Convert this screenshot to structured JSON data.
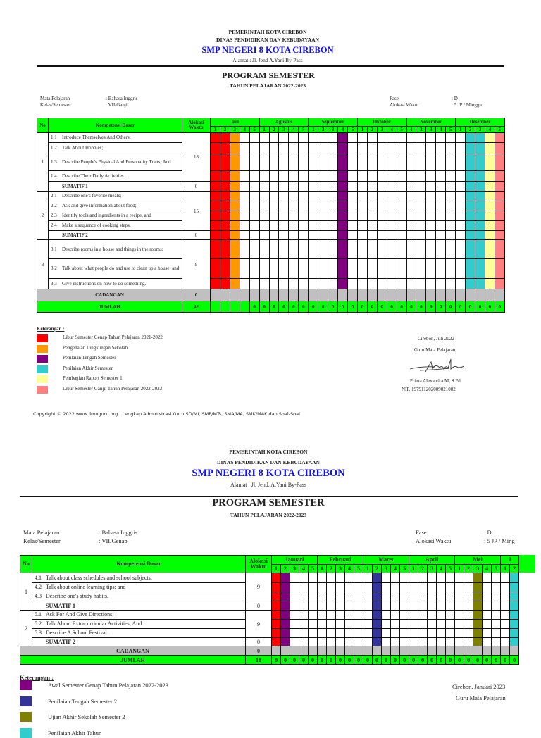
{
  "page1": {
    "header": {
      "government": "PEMERINTAH KOTA CIREBON",
      "department": "DINAS PENDIDIKAN DAN KEBUDAYAAN",
      "school": "SMP NEGERI 8 KOTA CIREBON",
      "address": "Alamat : Jl. Jend A.Yani By-Pass",
      "title": "PROGRAM SEMESTER",
      "year": "TAHUN PELAJARAN 2022-2023"
    },
    "info": {
      "subject_label": "Mata Pelajaran",
      "subject_value": ": Bahasa Inggris",
      "class_label": "Kelas/Semester",
      "class_value": ": VII/Ganjil",
      "phase_label": "Fase",
      "phase_value": ": D",
      "time_label": "Alokasi Waktu",
      "time_value": ": 5 JP / Minggu"
    },
    "table": {
      "col_no": "No",
      "col_kd": "Kompetensi Dasar",
      "col_alokasi": "Alokasi Waktu",
      "months": [
        {
          "name": "Juli",
          "weeks": [
            "1",
            "2",
            "3",
            "4",
            "5"
          ]
        },
        {
          "name": "Agustus",
          "weeks": [
            "1",
            "2",
            "3",
            "4",
            "5"
          ]
        },
        {
          "name": "September",
          "weeks": [
            "1",
            "2",
            "3",
            "4",
            "5"
          ]
        },
        {
          "name": "Oktober",
          "weeks": [
            "1",
            "2",
            "3",
            "4",
            "5"
          ]
        },
        {
          "name": "November",
          "weeks": [
            "1",
            "2",
            "3",
            "4",
            "5"
          ]
        },
        {
          "name": "Desember",
          "weeks": [
            "1",
            "2",
            "3",
            "4",
            "5"
          ]
        }
      ],
      "groups": [
        {
          "no": "1",
          "alokasi": "18",
          "items": [
            {
              "code": "1.1",
              "text": "Introduce Themselves And Others;"
            },
            {
              "code": "1.2",
              "text": "Talk About Hobbies;"
            },
            {
              "code": "1.3",
              "text": "Describe People's Physical And Personality Traits, And"
            },
            {
              "code": "1.4",
              "text": "Describe Their Daily Activities."
            }
          ],
          "sumatif": {
            "label": "SUMATIF 1",
            "alokasi": "0"
          }
        },
        {
          "no": "2",
          "alokasi": "15",
          "items": [
            {
              "code": "2.1",
              "text": "Describe one's favorite meals;"
            },
            {
              "code": "2.2",
              "text": "Ask and give information about food;"
            },
            {
              "code": "2.3",
              "text": "Identify tools and ingredients in a recipe, and"
            },
            {
              "code": "2.4",
              "text": "Make a sequence of cooking steps."
            }
          ],
          "sumatif": {
            "label": "SUMATIF 2",
            "alokasi": "0"
          }
        },
        {
          "no": "3",
          "alokasi": "9",
          "items": [
            {
              "code": "3.1",
              "text": "Describe rooms in a house and things in the rooms;"
            },
            {
              "code": "3.2",
              "text": "Talk about what people do and use to clean up a house; and"
            },
            {
              "code": "3.3",
              "text": "Give instructions on how to do something."
            }
          ],
          "sumatif": null
        }
      ],
      "cadangan": {
        "label": "CADANGAN",
        "value": "0"
      },
      "jumlah": {
        "label": "JUMLAH",
        "value": "42",
        "week_values": [
          "",
          "",
          "",
          "",
          "0",
          "0",
          "0",
          "0",
          "0",
          "0",
          "0",
          "0",
          "0",
          "0",
          "0",
          "0",
          "0",
          "0",
          "0",
          "0",
          "0",
          "0",
          "0",
          "0",
          "0",
          "0",
          "0",
          "0",
          "0",
          "0"
        ]
      },
      "highlights": [
        {
          "month": "Juli",
          "week": "1",
          "color": "#ff0000"
        },
        {
          "month": "Juli",
          "week": "2",
          "color": "#ff0000"
        },
        {
          "month": "Juli",
          "week": "3",
          "color": "#ff9900"
        },
        {
          "month": "September",
          "week": "4",
          "color": "#800080"
        },
        {
          "month": "Desember",
          "week": "2",
          "color": "#33cccc"
        },
        {
          "month": "Desember",
          "week": "3",
          "color": "#33cccc"
        },
        {
          "month": "Desember",
          "week": "4",
          "color": "#ffff99"
        },
        {
          "month": "Desember",
          "week": "5",
          "color": "#ff8080"
        }
      ]
    },
    "legend": {
      "title": "Keterangan :",
      "items": [
        {
          "color": "#ff0000",
          "label": "Libur Semester Genap Tahun Pelajaran 2021-2022"
        },
        {
          "color": "#ff9900",
          "label": "Pengenalan Lingkungan Sekolah"
        },
        {
          "color": "#800080",
          "label": "Penilaian Tengah Semester"
        },
        {
          "color": "#33cccc",
          "label": "Penilaian Akhir Semester"
        },
        {
          "color": "#ffff99",
          "label": "Pembagian Raport Semester 1"
        },
        {
          "color": "#ff8080",
          "label": "Libur Semester Ganjil Tahun Pelajaran 2022-2023"
        }
      ]
    },
    "signature": {
      "place_date": "Cirebon,  Juli 2022",
      "role": "Guru Mata Pelajaran",
      "name": "Prima Alexandra M, S.Pd",
      "nip": "NIP. 197911202009021002"
    },
    "copyright": "Copyright © 2022 www.ilmuguru.org | Lengkap Administrasi Guru SD/MI, SMP/MTs, SMA/MA, SMK/MAK dan Soal-Soal"
  },
  "page2": {
    "header": {
      "government": "PEMERINTAH KOTA CIREBON",
      "department": "DINAS PENDIDIKAN DAN KEBUDAYAAN",
      "school": "SMP NEGERI 8 KOTA CIREBON",
      "address": "Alamat : Jl. Jend. A.Yani By-Pass",
      "title": "PROGRAM SEMESTER",
      "year": "TAHUN PELAJARAN 2022-2023"
    },
    "info": {
      "subject_label": "Mata Pelajaran",
      "subject_value": ": Bahasa Inggris",
      "class_label": "Kelas/Semester",
      "class_value": ": VII/Genap",
      "phase_label": "Fase",
      "phase_value": ": D",
      "time_label": "Alokasi Waktu",
      "time_value": ": 5 JP / Ming"
    },
    "table": {
      "col_no": "No",
      "col_kd": "Kompetensi Dasar",
      "col_alokasi": "Alokasi Waktu",
      "months": [
        {
          "name": "Januari",
          "weeks": [
            "1",
            "2",
            "3",
            "4",
            "5"
          ]
        },
        {
          "name": "Februari",
          "weeks": [
            "1",
            "2",
            "3",
            "4",
            "5"
          ]
        },
        {
          "name": "Maret",
          "weeks": [
            "1",
            "2",
            "3",
            "4",
            "5"
          ]
        },
        {
          "name": "April",
          "weeks": [
            "1",
            "2",
            "3",
            "4",
            "5"
          ]
        },
        {
          "name": "Mei",
          "weeks": [
            "1",
            "2",
            "3",
            "4",
            "5"
          ]
        },
        {
          "name": "J",
          "weeks": [
            "1",
            "2"
          ]
        }
      ],
      "groups": [
        {
          "no": "1",
          "alokasi": "9",
          "items": [
            {
              "code": "4.1",
              "text": "Talk about class schedules and school subjects;"
            },
            {
              "code": "4.2",
              "text": "Talk about online learning tips; and"
            },
            {
              "code": "4.3",
              "text": "Describe one's study habits."
            }
          ],
          "sumatif": {
            "label": "SUMATIF 1",
            "alokasi": "0"
          }
        },
        {
          "no": "2",
          "alokasi": "9",
          "items": [
            {
              "code": "5.1",
              "text": "Ask For And Give Directions;"
            },
            {
              "code": "5.2",
              "text": "Talk About Extracurricular Activities; And"
            },
            {
              "code": "5.3",
              "text": "Describe A School Festival."
            }
          ],
          "sumatif": {
            "label": "SUMATIF 2",
            "alokasi": "0"
          }
        }
      ],
      "cadangan": {
        "label": "CADANGAN",
        "value": "0"
      },
      "jumlah": {
        "label": "JUMLAH",
        "value": "18",
        "week_values": [
          "0",
          "0",
          "0",
          "0",
          "0",
          "0",
          "0",
          "0",
          "0",
          "0",
          "0",
          "0",
          "0",
          "0",
          "0",
          "0",
          "0",
          "0",
          "0",
          "0",
          "0",
          "0",
          "0",
          "0",
          "0",
          "0",
          "0"
        ]
      },
      "highlights": [
        {
          "month": "Januari",
          "week": "1",
          "color": "#ff0000"
        },
        {
          "month": "Januari",
          "week": "2",
          "color": "#800080"
        },
        {
          "month": "Maret",
          "week": "2",
          "color": "#333399"
        },
        {
          "month": "Mei",
          "week": "3",
          "color": "#808000"
        },
        {
          "month": "J",
          "week": "2",
          "color": "#33cccc"
        }
      ]
    },
    "legend": {
      "title": "Keterangan :",
      "items": [
        {
          "color": "#800080",
          "label": "Awal Semester Genap Tahun Pelajaran 2022-2023"
        },
        {
          "color": "#333399",
          "label": "Penilaian Tengah Semester 2"
        },
        {
          "color": "#808000",
          "label": "Ujian Akhir Sekolah Semester 2"
        },
        {
          "color": "#33cccc",
          "label": "Penilaian Akhir Tahun"
        }
      ]
    },
    "signature": {
      "place_date": "Cirebon,  Januari 2023",
      "role": "Guru Mata Pelajaran"
    }
  }
}
